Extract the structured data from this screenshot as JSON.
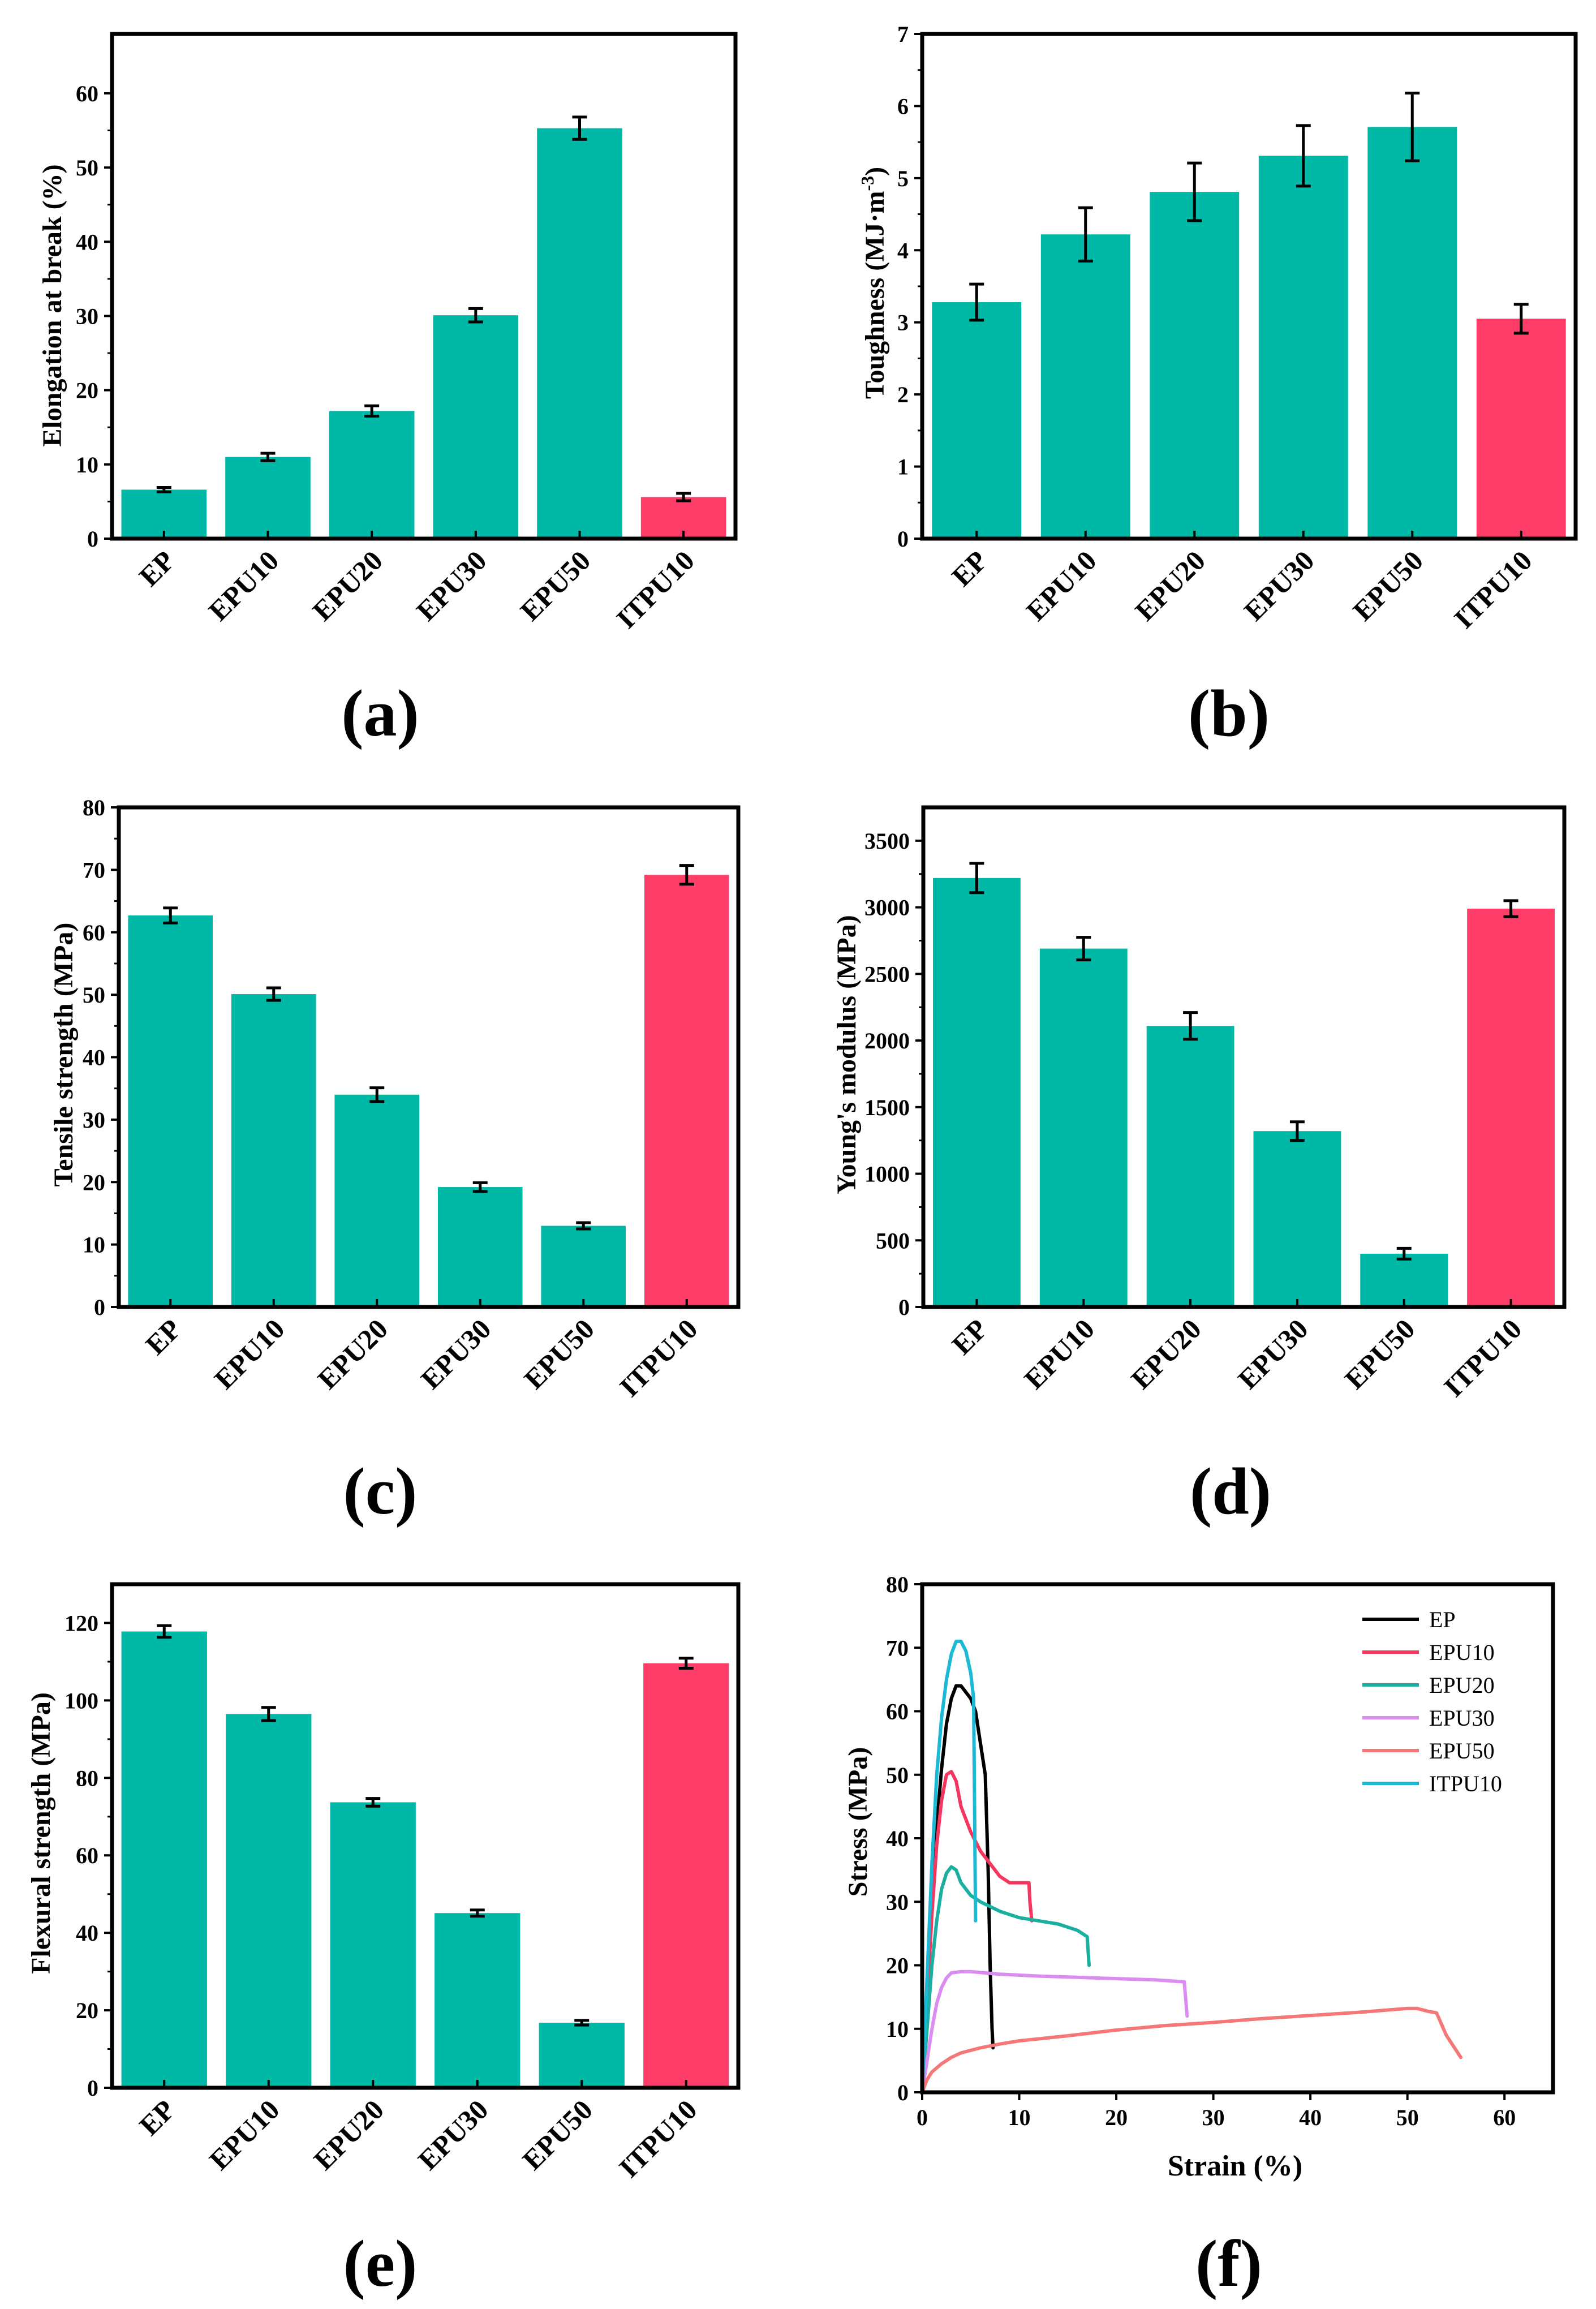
{
  "colors": {
    "teal": "#00B8A6",
    "pink": "#FF3D68",
    "axis": "#000000"
  },
  "chart_data": [
    {
      "type": "bar",
      "panel": "(a)",
      "ylabel": "Elongation at break (%)",
      "ylabel_sup": "",
      "ylabel_suffix": "",
      "categories": [
        "EP",
        "EPU10",
        "EPU20",
        "EPU30",
        "EPU50",
        "ITPU10"
      ],
      "values": [
        6.6,
        11.0,
        17.2,
        30.1,
        55.3,
        5.6
      ],
      "errors": [
        0.3,
        0.5,
        0.7,
        0.9,
        1.5,
        0.5
      ],
      "bar_colors": [
        "teal",
        "teal",
        "teal",
        "teal",
        "teal",
        "pink"
      ],
      "ylim": [
        0,
        68
      ],
      "yticks": [
        0,
        10,
        20,
        30,
        40,
        50,
        60
      ]
    },
    {
      "type": "bar",
      "panel": "(b)",
      "ylabel": "Toughness (MJ·m",
      "ylabel_sup": "-3",
      "ylabel_suffix": ")",
      "categories": [
        "EP",
        "EPU10",
        "EPU20",
        "EPU30",
        "EPU50",
        "ITPU10"
      ],
      "values": [
        3.28,
        4.22,
        4.81,
        5.31,
        5.71,
        3.05
      ],
      "errors": [
        0.25,
        0.37,
        0.4,
        0.42,
        0.47,
        0.2
      ],
      "bar_colors": [
        "teal",
        "teal",
        "teal",
        "teal",
        "teal",
        "pink"
      ],
      "ylim": [
        0,
        7
      ],
      "yticks": [
        0,
        1,
        2,
        3,
        4,
        5,
        6,
        7
      ]
    },
    {
      "type": "bar",
      "panel": "(c)",
      "ylabel": "Tensile strength (MPa)",
      "ylabel_sup": "",
      "ylabel_suffix": "",
      "categories": [
        "EP",
        "EPU10",
        "EPU20",
        "EPU30",
        "EPU50",
        "ITPU10"
      ],
      "values": [
        62.7,
        50.1,
        34.0,
        19.2,
        13.0,
        69.2
      ],
      "errors": [
        1.2,
        1.0,
        1.1,
        0.7,
        0.5,
        1.5
      ],
      "bar_colors": [
        "teal",
        "teal",
        "teal",
        "teal",
        "teal",
        "pink"
      ],
      "ylim": [
        0,
        80
      ],
      "yticks": [
        0,
        10,
        20,
        30,
        40,
        50,
        60,
        70,
        80
      ]
    },
    {
      "type": "bar",
      "panel": "(d)",
      "ylabel": "Young's modulus (MPa)",
      "ylabel_sup": "",
      "ylabel_suffix": "",
      "categories": [
        "EP",
        "EPU10",
        "EPU20",
        "EPU30",
        "EPU50",
        "ITPU10"
      ],
      "values": [
        3220,
        2690,
        2110,
        1320,
        400,
        2990
      ],
      "errors": [
        110,
        85,
        100,
        70,
        40,
        60
      ],
      "bar_colors": [
        "teal",
        "teal",
        "teal",
        "teal",
        "teal",
        "pink"
      ],
      "ylim": [
        0,
        3750
      ],
      "yticks": [
        0,
        500,
        1000,
        1500,
        2000,
        2500,
        3000,
        3500
      ]
    },
    {
      "type": "bar",
      "panel": "(e)",
      "ylabel": "Flexural strength (MPa)",
      "ylabel_sup": "",
      "ylabel_suffix": "",
      "categories": [
        "EP",
        "EPU10",
        "EPU20",
        "EPU30",
        "EPU50",
        "ITPU10"
      ],
      "values": [
        117.8,
        96.5,
        73.7,
        45.1,
        16.8,
        109.6
      ],
      "errors": [
        1.5,
        1.7,
        1.0,
        0.8,
        0.6,
        1.3
      ],
      "bar_colors": [
        "teal",
        "teal",
        "teal",
        "teal",
        "teal",
        "pink"
      ],
      "ylim": [
        0,
        130
      ],
      "yticks": [
        0,
        20,
        40,
        60,
        80,
        100,
        120
      ]
    },
    {
      "type": "line",
      "panel": "(f)",
      "xlabel": "Strain (%)",
      "ylabel": "Stress (MPa)",
      "xlim": [
        0,
        65
      ],
      "ylim": [
        0,
        80
      ],
      "xticks": [
        0,
        10,
        20,
        30,
        40,
        50,
        60
      ],
      "yticks": [
        0,
        10,
        20,
        30,
        40,
        50,
        60,
        70,
        80
      ],
      "series": [
        {
          "name": "EP",
          "color": "#000000",
          "x": [
            0,
            0.5,
            1,
            1.5,
            2,
            2.5,
            3,
            3.5,
            4,
            4.5,
            5,
            5.5,
            6,
            6.5,
            6.8,
            7.0,
            7.2,
            7.3
          ],
          "y": [
            0,
            15,
            30,
            42,
            51,
            58,
            62,
            64,
            64,
            63,
            62,
            60,
            55,
            50,
            35,
            20,
            10,
            7
          ]
        },
        {
          "name": "EPU10",
          "color": "#F5365F",
          "x": [
            0,
            0.5,
            1,
            1.5,
            2,
            2.5,
            3,
            3.5,
            4,
            5,
            6,
            7,
            8,
            9,
            10,
            11,
            11.1,
            11.3
          ],
          "y": [
            0,
            14,
            28,
            39,
            46,
            50,
            50.5,
            49,
            45,
            41,
            38,
            36,
            34,
            33,
            33,
            33,
            30,
            27
          ]
        },
        {
          "name": "EPU20",
          "color": "#1AAFA0",
          "x": [
            0,
            0.5,
            1,
            1.5,
            2,
            2.5,
            3,
            3.5,
            4,
            5,
            6,
            8,
            10,
            12,
            14,
            16,
            17,
            17.2
          ],
          "y": [
            0,
            10,
            20,
            27,
            32,
            34.5,
            35.5,
            35,
            33,
            31,
            30,
            28.5,
            27.5,
            27,
            26.5,
            25.5,
            24.5,
            20
          ]
        },
        {
          "name": "EPU30",
          "color": "#DB8CF0",
          "x": [
            0,
            0.5,
            1,
            1.5,
            2,
            2.5,
            3,
            4,
            5,
            8,
            12,
            16,
            20,
            24,
            27,
            27.3
          ],
          "y": [
            0,
            5,
            10,
            14,
            16.5,
            18,
            18.8,
            19,
            19,
            18.6,
            18.3,
            18.1,
            17.9,
            17.7,
            17.4,
            12
          ]
        },
        {
          "name": "EPU50",
          "color": "#F47878",
          "x": [
            0,
            0.5,
            1,
            2,
            3,
            4,
            6,
            8,
            10,
            15,
            20,
            25,
            30,
            35,
            40,
            45,
            50,
            51,
            52,
            53,
            54,
            55.5
          ],
          "y": [
            0,
            2,
            3.2,
            4.5,
            5.5,
            6.2,
            7,
            7.6,
            8.1,
            8.9,
            9.8,
            10.5,
            11,
            11.6,
            12.1,
            12.6,
            13.2,
            13.2,
            12.8,
            12.5,
            9,
            5.5
          ]
        },
        {
          "name": "ITPU10",
          "color": "#1BB9D6",
          "x": [
            0,
            0.5,
            1,
            1.5,
            2,
            2.5,
            3,
            3.5,
            4,
            4.5,
            5,
            5.3,
            5.4,
            5.5
          ],
          "y": [
            0,
            18,
            36,
            50,
            59,
            65,
            69,
            71,
            71,
            69.5,
            66,
            62,
            45,
            27
          ]
        }
      ]
    }
  ]
}
